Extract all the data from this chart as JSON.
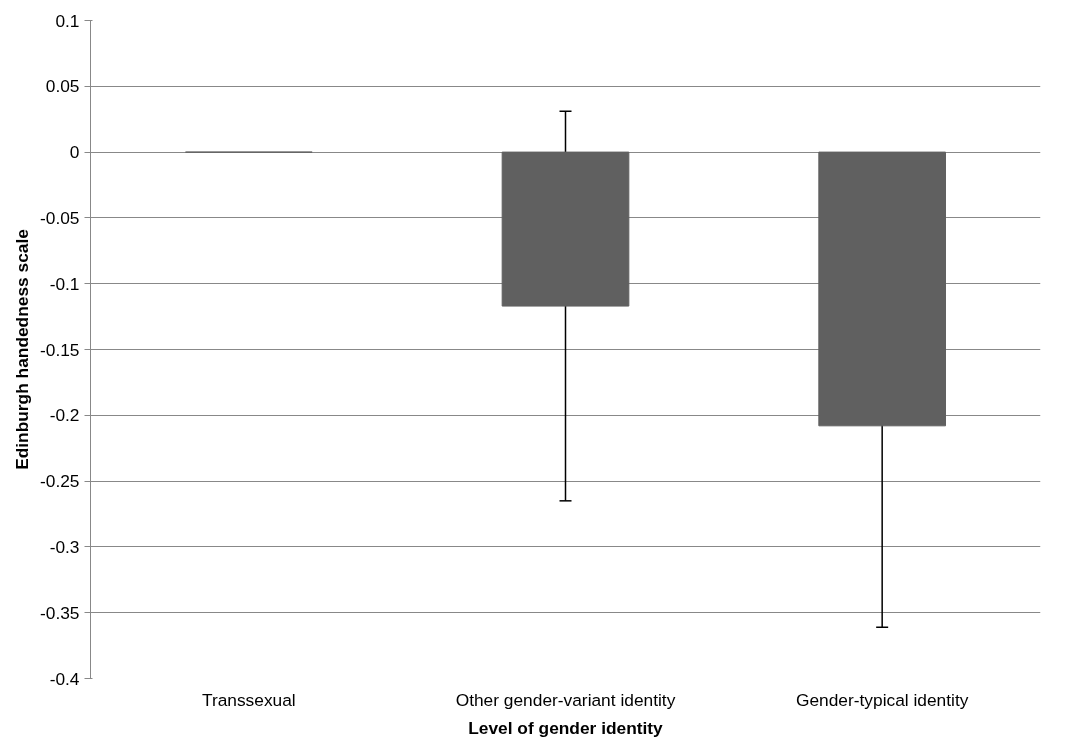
{
  "chart_data": {
    "type": "bar",
    "xlabel": "Level of gender identity",
    "ylabel": "Edinburgh handedness scale",
    "categories": [
      "Transsexual",
      "Other gender-variant identity",
      "Gender-typical identity"
    ],
    "values": [
      0,
      -0.117,
      -0.208
    ],
    "errors": [
      null,
      0.148,
      0.153
    ],
    "color": "#606060",
    "ylim": [
      -0.4,
      0.1
    ],
    "yticks": [
      -0.4,
      -0.35,
      -0.3,
      -0.25,
      -0.2,
      -0.15,
      -0.1,
      -0.05,
      0,
      0.05,
      0.1
    ],
    "grid": "y"
  }
}
